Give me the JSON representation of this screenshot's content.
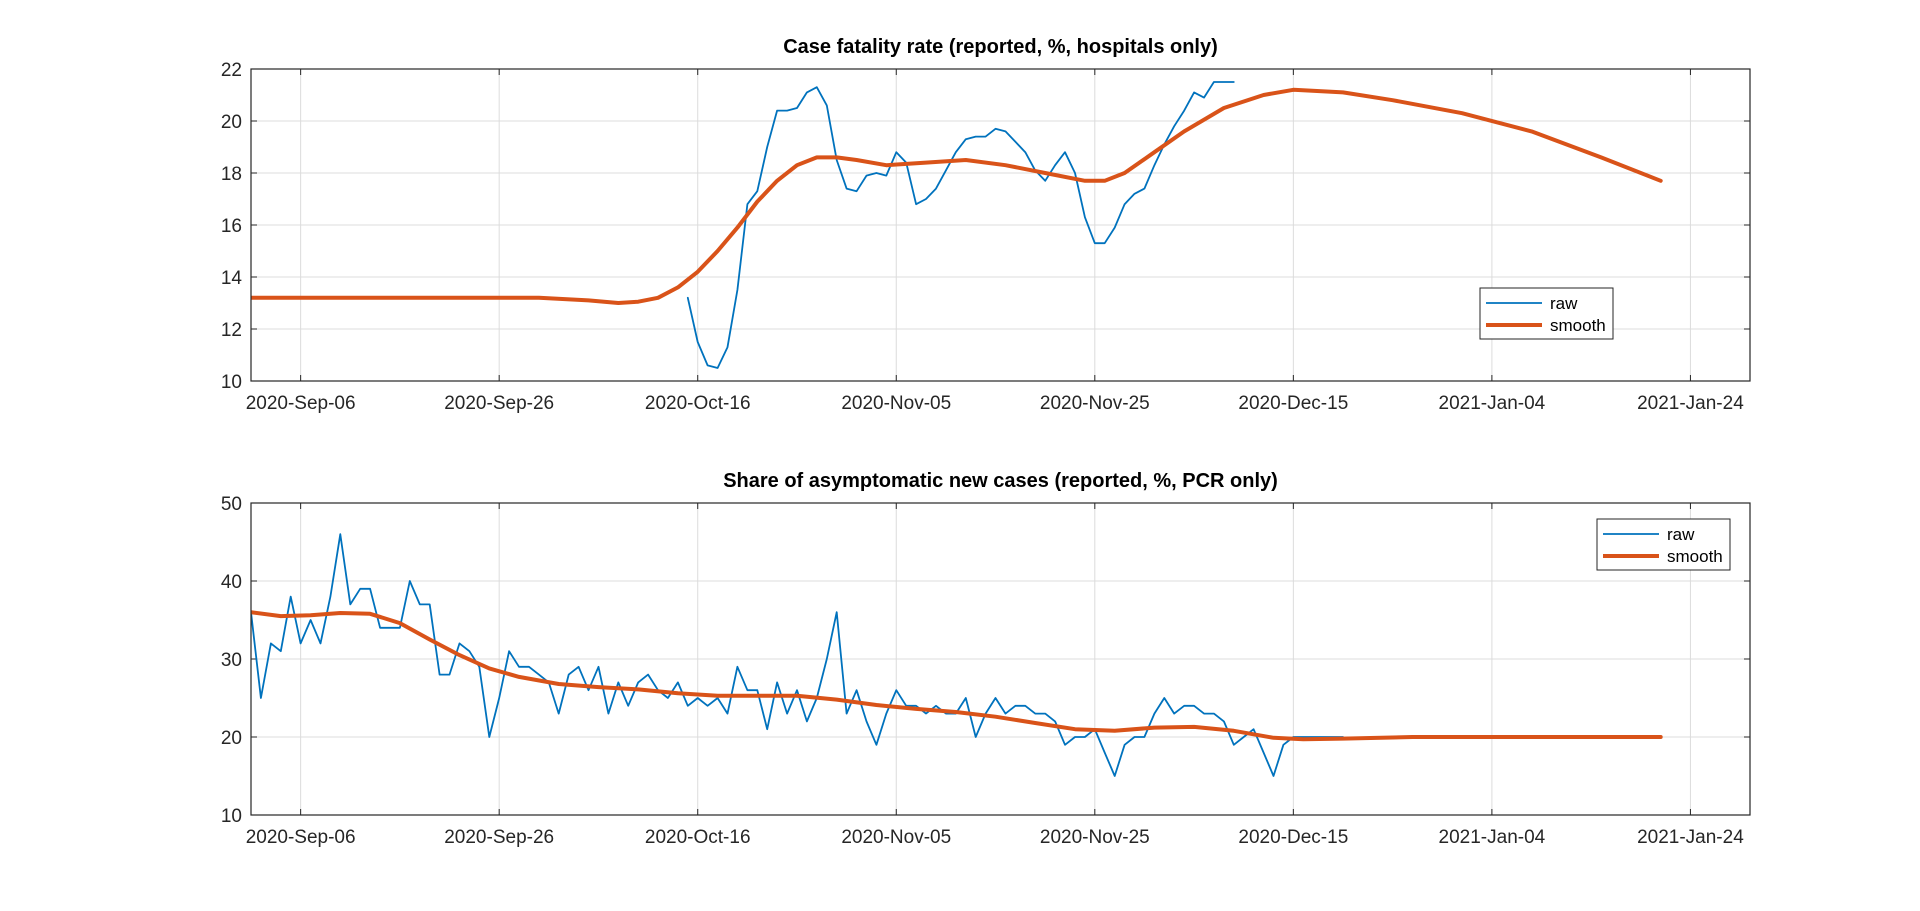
{
  "chart_data": [
    {
      "type": "line",
      "title": "Case fatality rate (reported,  %, hospitals only)",
      "xlabel": "",
      "ylabel": "",
      "xlim": [
        "2020-09-01",
        "2021-01-30"
      ],
      "ylim": [
        10,
        22
      ],
      "x_ticks": [
        "2020-Sep-06",
        "2020-Sep-26",
        "2020-Oct-16",
        "2020-Nov-05",
        "2020-Nov-25",
        "2020-Dec-15",
        "2021-Jan-04",
        "2021-Jan-24"
      ],
      "y_ticks": [
        10,
        12,
        14,
        16,
        18,
        20,
        22
      ],
      "grid": true,
      "legend": {
        "location": "bottom-right",
        "entries": [
          "raw",
          "smooth"
        ]
      },
      "colors": {
        "raw": "#0072BD",
        "smooth": "#D95319"
      },
      "series": [
        {
          "name": "raw",
          "x": [
            "2020-10-15",
            "2020-10-16",
            "2020-10-17",
            "2020-10-18",
            "2020-10-19",
            "2020-10-20",
            "2020-10-21",
            "2020-10-22",
            "2020-10-23",
            "2020-10-24",
            "2020-10-25",
            "2020-10-26",
            "2020-10-27",
            "2020-10-28",
            "2020-10-29",
            "2020-10-30",
            "2020-10-31",
            "2020-11-01",
            "2020-11-02",
            "2020-11-03",
            "2020-11-04",
            "2020-11-05",
            "2020-11-06",
            "2020-11-07",
            "2020-11-08",
            "2020-11-09",
            "2020-11-10",
            "2020-11-11",
            "2020-11-12",
            "2020-11-13",
            "2020-11-14",
            "2020-11-15",
            "2020-11-16",
            "2020-11-17",
            "2020-11-18",
            "2020-11-19",
            "2020-11-20",
            "2020-11-21",
            "2020-11-22",
            "2020-11-23",
            "2020-11-24",
            "2020-11-25",
            "2020-11-26",
            "2020-11-27",
            "2020-11-28",
            "2020-11-29",
            "2020-11-30",
            "2020-12-01",
            "2020-12-02",
            "2020-12-03",
            "2020-12-04",
            "2020-12-05",
            "2020-12-06",
            "2020-12-07",
            "2020-12-08",
            "2020-12-09"
          ],
          "y": [
            13.2,
            11.5,
            10.6,
            10.5,
            11.3,
            13.5,
            16.8,
            17.3,
            19.0,
            20.4,
            20.4,
            20.5,
            21.1,
            21.3,
            20.6,
            18.5,
            17.4,
            17.3,
            17.9,
            18.0,
            17.9,
            18.8,
            18.4,
            16.8,
            17.0,
            17.4,
            18.1,
            18.8,
            19.3,
            19.4,
            19.4,
            19.7,
            19.6,
            19.2,
            18.8,
            18.1,
            17.7,
            18.3,
            18.8,
            18.0,
            16.3,
            15.3,
            15.3,
            15.9,
            16.8,
            17.2,
            17.4,
            18.3,
            19.1,
            19.8,
            20.4,
            21.1,
            20.9,
            21.5,
            21.5,
            21.5
          ]
        },
        {
          "name": "smooth",
          "x": [
            "2020-09-01",
            "2020-09-10",
            "2020-09-20",
            "2020-09-30",
            "2020-10-05",
            "2020-10-08",
            "2020-10-10",
            "2020-10-12",
            "2020-10-14",
            "2020-10-16",
            "2020-10-18",
            "2020-10-20",
            "2020-10-22",
            "2020-10-24",
            "2020-10-26",
            "2020-10-28",
            "2020-10-30",
            "2020-11-01",
            "2020-11-04",
            "2020-11-08",
            "2020-11-12",
            "2020-11-16",
            "2020-11-20",
            "2020-11-24",
            "2020-11-26",
            "2020-11-28",
            "2020-12-01",
            "2020-12-04",
            "2020-12-08",
            "2020-12-12",
            "2020-12-15",
            "2020-12-20",
            "2020-12-25",
            "2021-01-01",
            "2021-01-08",
            "2021-01-15",
            "2021-01-21"
          ],
          "y": [
            13.2,
            13.2,
            13.2,
            13.2,
            13.1,
            13.0,
            13.05,
            13.2,
            13.6,
            14.2,
            15.0,
            15.9,
            16.9,
            17.7,
            18.3,
            18.6,
            18.6,
            18.5,
            18.3,
            18.4,
            18.5,
            18.3,
            18.0,
            17.7,
            17.7,
            18.0,
            18.8,
            19.6,
            20.5,
            21.0,
            21.2,
            21.1,
            20.8,
            20.3,
            19.6,
            18.6,
            17.7
          ]
        }
      ]
    },
    {
      "type": "line",
      "title": "Share of asymptomatic new cases (reported,  %, PCR only)",
      "xlabel": "",
      "ylabel": "",
      "xlim": [
        "2020-09-01",
        "2021-01-30"
      ],
      "ylim": [
        10,
        50
      ],
      "x_ticks": [
        "2020-Sep-06",
        "2020-Sep-26",
        "2020-Oct-16",
        "2020-Nov-05",
        "2020-Nov-25",
        "2020-Dec-15",
        "2021-Jan-04",
        "2021-Jan-24"
      ],
      "y_ticks": [
        10,
        20,
        30,
        40,
        50
      ],
      "grid": true,
      "legend": {
        "location": "top-right",
        "entries": [
          "raw",
          "smooth"
        ]
      },
      "colors": {
        "raw": "#0072BD",
        "smooth": "#D95319"
      },
      "series": [
        {
          "name": "raw",
          "x": [
            "2020-09-01",
            "2020-09-02",
            "2020-09-03",
            "2020-09-04",
            "2020-09-05",
            "2020-09-06",
            "2020-09-07",
            "2020-09-08",
            "2020-09-09",
            "2020-09-10",
            "2020-09-11",
            "2020-09-12",
            "2020-09-13",
            "2020-09-14",
            "2020-09-15",
            "2020-09-16",
            "2020-09-17",
            "2020-09-18",
            "2020-09-19",
            "2020-09-20",
            "2020-09-21",
            "2020-09-22",
            "2020-09-23",
            "2020-09-24",
            "2020-09-25",
            "2020-09-26",
            "2020-09-27",
            "2020-09-28",
            "2020-09-29",
            "2020-09-30",
            "2020-10-01",
            "2020-10-02",
            "2020-10-03",
            "2020-10-04",
            "2020-10-05",
            "2020-10-06",
            "2020-10-07",
            "2020-10-08",
            "2020-10-09",
            "2020-10-10",
            "2020-10-11",
            "2020-10-12",
            "2020-10-13",
            "2020-10-14",
            "2020-10-15",
            "2020-10-16",
            "2020-10-17",
            "2020-10-18",
            "2020-10-19",
            "2020-10-20",
            "2020-10-21",
            "2020-10-22",
            "2020-10-23",
            "2020-10-24",
            "2020-10-25",
            "2020-10-26",
            "2020-10-27",
            "2020-10-28",
            "2020-10-29",
            "2020-10-30",
            "2020-10-31",
            "2020-11-01",
            "2020-11-02",
            "2020-11-03",
            "2020-11-04",
            "2020-11-05",
            "2020-11-06",
            "2020-11-07",
            "2020-11-08",
            "2020-11-09",
            "2020-11-10",
            "2020-11-11",
            "2020-11-12",
            "2020-11-13",
            "2020-11-14",
            "2020-11-15",
            "2020-11-16",
            "2020-11-17",
            "2020-11-18",
            "2020-11-19",
            "2020-11-20",
            "2020-11-21",
            "2020-11-22",
            "2020-11-23",
            "2020-11-24",
            "2020-11-25",
            "2020-11-26",
            "2020-11-27",
            "2020-11-28",
            "2020-11-29",
            "2020-11-30",
            "2020-12-01",
            "2020-12-02",
            "2020-12-03",
            "2020-12-04",
            "2020-12-05",
            "2020-12-06",
            "2020-12-07",
            "2020-12-08",
            "2020-12-09",
            "2020-12-10",
            "2020-12-11",
            "2020-12-12",
            "2020-12-13",
            "2020-12-14",
            "2020-12-15",
            "2020-12-16",
            "2020-12-17",
            "2020-12-18",
            "2020-12-19",
            "2020-12-20"
          ],
          "y": [
            36,
            25,
            32,
            31,
            38,
            32,
            35,
            32,
            38,
            46,
            37,
            39,
            39,
            34,
            34,
            34,
            40,
            37,
            37,
            28,
            28,
            32,
            31,
            29,
            20,
            25,
            31,
            29,
            29,
            28,
            27,
            23,
            28,
            29,
            26,
            29,
            23,
            27,
            24,
            27,
            28,
            26,
            25,
            27,
            24,
            25,
            24,
            25,
            23,
            29,
            26,
            26,
            21,
            27,
            23,
            26,
            22,
            25,
            30,
            36,
            23,
            26,
            22,
            19,
            23,
            26,
            24,
            24,
            23,
            24,
            23,
            23,
            25,
            20,
            23,
            25,
            23,
            24,
            24,
            23,
            23,
            22,
            19,
            20,
            20,
            21,
            18,
            15,
            19,
            20,
            20,
            23,
            25,
            23,
            24,
            24,
            23,
            23,
            22,
            19,
            20,
            21,
            18,
            15,
            19,
            20,
            20,
            20,
            20,
            20,
            20
          ]
        },
        {
          "name": "smooth",
          "x": [
            "2020-09-01",
            "2020-09-04",
            "2020-09-07",
            "2020-09-10",
            "2020-09-13",
            "2020-09-16",
            "2020-09-19",
            "2020-09-22",
            "2020-09-25",
            "2020-09-28",
            "2020-10-02",
            "2020-10-06",
            "2020-10-10",
            "2020-10-14",
            "2020-10-18",
            "2020-10-22",
            "2020-10-26",
            "2020-10-30",
            "2020-11-03",
            "2020-11-07",
            "2020-11-11",
            "2020-11-15",
            "2020-11-19",
            "2020-11-23",
            "2020-11-27",
            "2020-12-01",
            "2020-12-05",
            "2020-12-09",
            "2020-12-13",
            "2020-12-16",
            "2020-12-20",
            "2020-12-27",
            "2021-01-05",
            "2021-01-13",
            "2021-01-21"
          ],
          "y": [
            36,
            35.5,
            35.6,
            35.9,
            35.8,
            34.6,
            32.5,
            30.5,
            28.8,
            27.7,
            26.8,
            26.4,
            26.1,
            25.6,
            25.3,
            25.3,
            25.3,
            24.8,
            24.1,
            23.6,
            23.2,
            22.6,
            21.8,
            21.0,
            20.8,
            21.2,
            21.3,
            20.8,
            19.9,
            19.7,
            19.8,
            20.0,
            20.0,
            20.0,
            20.0
          ]
        }
      ]
    }
  ]
}
